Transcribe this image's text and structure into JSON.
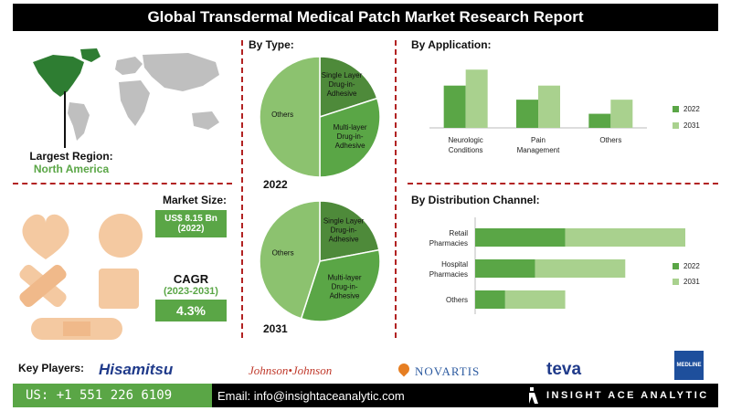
{
  "header": {
    "title": "Global Transdermal Medical Patch Market Research Report"
  },
  "region": {
    "label": "Largest Region:",
    "value": "North America"
  },
  "market_size": {
    "label": "Market Size:",
    "value": "US$ 8.15 Bn",
    "year": "(2022)"
  },
  "cagr": {
    "label": "CAGR",
    "period": "(2023-2031)",
    "value": "4.3%"
  },
  "sections": {
    "by_type": "By Type:",
    "by_application": "By Application:",
    "by_distribution": "By Distribution Channel:"
  },
  "key_players": {
    "label": "Key Players:",
    "logos": [
      "Hisamitsu",
      "Johnson•Johnson",
      "NOVARTIS",
      "teva",
      "MEDLINE"
    ]
  },
  "footer": {
    "phone": "US: +1 551 226 6109",
    "email": "Email: info@insightaceanalytic.com",
    "brand": "INSIGHT ACE ANALYTIC"
  },
  "colors": {
    "dark_green": "#5aa646",
    "light_green": "#a9d18e",
    "accent_red": "#b22222",
    "map_highlight": "#2e7d32",
    "map_base": "#bfbfbf"
  },
  "chart_data": [
    {
      "type": "pie",
      "title": "2022",
      "labels": [
        "Single Layer Drug-in-Adhesive",
        "Multi-layer Drug-in-Adhesive",
        "Others"
      ],
      "values": [
        20,
        30,
        50
      ],
      "colors": [
        "#4e8a3a",
        "#5aa646",
        "#8cc26f"
      ]
    },
    {
      "type": "pie",
      "title": "2031",
      "labels": [
        "Single Layer Drug-in-Adhesive",
        "Multi-layer Drug-in-Adhesive",
        "Others"
      ],
      "values": [
        22,
        33,
        45
      ],
      "colors": [
        "#4e8a3a",
        "#5aa646",
        "#8cc26f"
      ]
    },
    {
      "type": "bar",
      "orientation": "vertical",
      "categories": [
        "Neurologic Conditions",
        "Pain Management",
        "Others"
      ],
      "series": [
        {
          "name": "2022",
          "values": [
            45,
            30,
            15
          ],
          "color": "#5aa646"
        },
        {
          "name": "2031",
          "values": [
            62,
            45,
            30
          ],
          "color": "#a9d18e"
        }
      ],
      "ylim": [
        0,
        70
      ],
      "legend": "right"
    },
    {
      "type": "bar",
      "orientation": "horizontal",
      "stacked": true,
      "categories": [
        "Retail Pharmacies",
        "Hospital Pharmacies",
        "Others"
      ],
      "series": [
        {
          "name": "2022",
          "values": [
            30,
            20,
            10
          ],
          "color": "#5aa646"
        },
        {
          "name": "2031",
          "values": [
            40,
            30,
            20
          ],
          "color": "#a9d18e"
        }
      ],
      "xlim": [
        0,
        70
      ],
      "legend": "right"
    }
  ]
}
